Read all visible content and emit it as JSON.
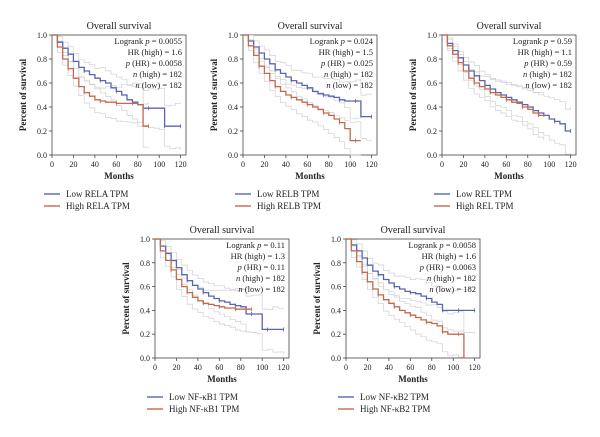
{
  "colors": {
    "low": "#5b63b5",
    "high": "#c46a4c",
    "ci": "#cfcfd6",
    "axis": "#444444"
  },
  "chart_data": [
    {
      "type": "line",
      "title": "Overall survival",
      "xlabel": "Months",
      "ylabel": "Percent of survival",
      "xlim": [
        0,
        125
      ],
      "ylim": [
        0,
        1.0
      ],
      "xticks": [
        "0",
        "20",
        "40",
        "60",
        "80",
        "100",
        "120"
      ],
      "yticks": [
        "0.0",
        "0.2",
        "0.4",
        "0.6",
        "0.8",
        "1.0"
      ],
      "stats": [
        {
          "key": "Logrank",
          "italic": "p",
          "value": " = 0.0055"
        },
        {
          "key": "HR (high) = 1.6",
          "italic": "",
          "value": ""
        },
        {
          "key": "",
          "italic": "p",
          "value": " (HR) = 0.0058"
        },
        {
          "key": "",
          "italic": "n",
          "value": " (high) = 182"
        },
        {
          "key": "",
          "italic": "n",
          "value": " (low) = 182"
        }
      ],
      "legend": [
        "Low RELA TPM",
        "High RELA TPM"
      ],
      "series": [
        {
          "name": "Low RELA TPM",
          "color": "low",
          "x": [
            0,
            5,
            10,
            15,
            20,
            25,
            30,
            35,
            40,
            45,
            50,
            55,
            60,
            65,
            70,
            75,
            80,
            85,
            90,
            95,
            100,
            105,
            110,
            115,
            120
          ],
          "y": [
            1.0,
            0.94,
            0.89,
            0.84,
            0.78,
            0.73,
            0.7,
            0.67,
            0.64,
            0.62,
            0.6,
            0.56,
            0.53,
            0.5,
            0.46,
            0.44,
            0.42,
            0.39,
            0.39,
            0.39,
            0.39,
            0.24,
            0.24,
            0.24,
            0.24
          ]
        },
        {
          "name": "High RELA TPM",
          "color": "high",
          "x": [
            0,
            5,
            10,
            15,
            20,
            25,
            30,
            35,
            40,
            45,
            50,
            55,
            60,
            65,
            70,
            75,
            80,
            85,
            90
          ],
          "y": [
            1.0,
            0.9,
            0.8,
            0.72,
            0.64,
            0.57,
            0.52,
            0.49,
            0.46,
            0.45,
            0.44,
            0.44,
            0.43,
            0.43,
            0.43,
            0.43,
            0.42,
            0.24,
            0.24
          ]
        }
      ]
    },
    {
      "type": "line",
      "title": "Overall survival",
      "xlabel": "Months",
      "ylabel": "Percent of survival",
      "xlim": [
        0,
        125
      ],
      "ylim": [
        0,
        1.0
      ],
      "xticks": [
        "0",
        "20",
        "40",
        "60",
        "80",
        "100",
        "120"
      ],
      "yticks": [
        "0.0",
        "0.2",
        "0.4",
        "0.6",
        "0.8",
        "1.0"
      ],
      "stats": [
        {
          "key": "Logrank",
          "italic": "p",
          "value": " = 0.024"
        },
        {
          "key": "HR (high) = 1.5",
          "italic": "",
          "value": ""
        },
        {
          "key": "",
          "italic": "p",
          "value": " (HR) = 0.025"
        },
        {
          "key": "",
          "italic": "n",
          "value": " (high) = 182"
        },
        {
          "key": "",
          "italic": "n",
          "value": " (low) = 182"
        }
      ],
      "legend": [
        "Low RELB TPM",
        "High RELB TPM"
      ],
      "series": [
        {
          "name": "Low RELB TPM",
          "color": "low",
          "x": [
            0,
            5,
            10,
            15,
            20,
            25,
            30,
            35,
            40,
            45,
            50,
            55,
            60,
            65,
            70,
            75,
            80,
            85,
            90,
            95,
            100,
            105,
            110,
            115,
            120
          ],
          "y": [
            1.0,
            0.95,
            0.9,
            0.85,
            0.8,
            0.76,
            0.71,
            0.68,
            0.65,
            0.62,
            0.6,
            0.58,
            0.56,
            0.53,
            0.51,
            0.5,
            0.49,
            0.48,
            0.46,
            0.45,
            0.45,
            0.45,
            0.32,
            0.32,
            0.32
          ]
        },
        {
          "name": "High RELB TPM",
          "color": "high",
          "x": [
            0,
            5,
            10,
            15,
            20,
            25,
            30,
            35,
            40,
            45,
            50,
            55,
            60,
            65,
            70,
            75,
            80,
            85,
            90,
            95,
            100,
            105,
            110
          ],
          "y": [
            1.0,
            0.91,
            0.83,
            0.74,
            0.68,
            0.62,
            0.57,
            0.53,
            0.5,
            0.48,
            0.46,
            0.44,
            0.42,
            0.4,
            0.38,
            0.35,
            0.33,
            0.3,
            0.27,
            0.22,
            0.12,
            0.12,
            0.12
          ]
        }
      ]
    },
    {
      "type": "line",
      "title": "Overall survival",
      "xlabel": "Months",
      "ylabel": "Percent of survival",
      "xlim": [
        0,
        125
      ],
      "ylim": [
        0,
        1.0
      ],
      "xticks": [
        "0",
        "20",
        "40",
        "60",
        "80",
        "100",
        "120"
      ],
      "yticks": [
        "0.0",
        "0.2",
        "0.4",
        "0.6",
        "0.8",
        "1.0"
      ],
      "stats": [
        {
          "key": "Logrank",
          "italic": "p",
          "value": " = 0.59"
        },
        {
          "key": "HR (high) = 1.1",
          "italic": "",
          "value": ""
        },
        {
          "key": "",
          "italic": "p",
          "value": " (HR) = 0.59"
        },
        {
          "key": "",
          "italic": "n",
          "value": " (high) = 182"
        },
        {
          "key": "",
          "italic": "n",
          "value": " (low) = 182"
        }
      ],
      "legend": [
        "Low REL TPM",
        "High REL TPM"
      ],
      "series": [
        {
          "name": "Low REL TPM",
          "color": "low",
          "x": [
            0,
            5,
            10,
            15,
            20,
            25,
            30,
            35,
            40,
            45,
            50,
            55,
            60,
            65,
            70,
            75,
            80,
            85,
            90,
            95,
            100,
            105,
            110,
            115,
            120
          ],
          "y": [
            1.0,
            0.93,
            0.87,
            0.81,
            0.75,
            0.7,
            0.66,
            0.62,
            0.58,
            0.55,
            0.52,
            0.5,
            0.48,
            0.46,
            0.44,
            0.42,
            0.4,
            0.37,
            0.35,
            0.33,
            0.3,
            0.28,
            0.26,
            0.2,
            0.2
          ]
        },
        {
          "name": "High REL TPM",
          "color": "high",
          "x": [
            0,
            5,
            10,
            15,
            20,
            25,
            30,
            35,
            40,
            45,
            50,
            55,
            60,
            65,
            70,
            75,
            80,
            85,
            90,
            95
          ],
          "y": [
            1.0,
            0.91,
            0.84,
            0.77,
            0.7,
            0.64,
            0.6,
            0.57,
            0.55,
            0.52,
            0.5,
            0.48,
            0.46,
            0.44,
            0.43,
            0.4,
            0.38,
            0.35,
            0.33,
            0.32
          ]
        }
      ]
    },
    {
      "type": "line",
      "title": "Overall survival",
      "xlabel": "Months",
      "ylabel": "Percent of survival",
      "xlim": [
        0,
        125
      ],
      "ylim": [
        0,
        1.0
      ],
      "xticks": [
        "0",
        "20",
        "40",
        "60",
        "80",
        "100",
        "120"
      ],
      "yticks": [
        "0.0",
        "0.2",
        "0.4",
        "0.6",
        "0.8",
        "1.0"
      ],
      "stats": [
        {
          "key": "Logrank",
          "italic": "p",
          "value": " = 0.11"
        },
        {
          "key": "HR (high) = 1.3",
          "italic": "",
          "value": ""
        },
        {
          "key": "",
          "italic": "p",
          "value": " (HR) = 0.11"
        },
        {
          "key": "",
          "italic": "n",
          "value": " (high) = 182"
        },
        {
          "key": "",
          "italic": "n",
          "value": " (low) = 182"
        }
      ],
      "legend": [
        "Low NF-κB1 TPM",
        "High NF-κB1 TPM"
      ],
      "series": [
        {
          "name": "Low NF-κB1 TPM",
          "color": "low",
          "x": [
            0,
            5,
            10,
            15,
            20,
            25,
            30,
            35,
            40,
            45,
            50,
            55,
            60,
            65,
            70,
            75,
            80,
            85,
            90,
            95,
            100,
            105,
            110,
            115,
            120
          ],
          "y": [
            1.0,
            0.94,
            0.88,
            0.82,
            0.76,
            0.7,
            0.65,
            0.61,
            0.58,
            0.55,
            0.52,
            0.5,
            0.48,
            0.47,
            0.45,
            0.44,
            0.43,
            0.37,
            0.37,
            0.37,
            0.24,
            0.24,
            0.24,
            0.24,
            0.24
          ]
        },
        {
          "name": "High NF-κB1 TPM",
          "color": "high",
          "x": [
            0,
            5,
            10,
            15,
            20,
            25,
            30,
            35,
            40,
            45,
            50,
            55,
            60,
            65,
            70,
            75,
            80,
            85,
            90
          ],
          "y": [
            1.0,
            0.9,
            0.82,
            0.74,
            0.66,
            0.6,
            0.55,
            0.51,
            0.48,
            0.46,
            0.45,
            0.44,
            0.43,
            0.42,
            0.42,
            0.41,
            0.41,
            0.41,
            0.41
          ]
        }
      ]
    },
    {
      "type": "line",
      "title": "Overall survival",
      "xlabel": "Months",
      "ylabel": "Percent of survival",
      "xlim": [
        0,
        125
      ],
      "ylim": [
        0,
        1.0
      ],
      "xticks": [
        "0",
        "20",
        "40",
        "60",
        "80",
        "100",
        "120"
      ],
      "yticks": [
        "0.0",
        "0.2",
        "0.4",
        "0.6",
        "0.8",
        "1.0"
      ],
      "stats": [
        {
          "key": "Logrank",
          "italic": "p",
          "value": " = 0.0058"
        },
        {
          "key": "HR (high) = 1.6",
          "italic": "",
          "value": ""
        },
        {
          "key": "",
          "italic": "p",
          "value": " (HR) = 0.0063"
        },
        {
          "key": "",
          "italic": "n",
          "value": " (high) = 182"
        },
        {
          "key": "",
          "italic": "n",
          "value": " (low) = 182"
        }
      ],
      "legend": [
        "Low NF-κB2 TPM",
        "High NF-κB2 TPM"
      ],
      "series": [
        {
          "name": "Low NF-κB2 TPM",
          "color": "low",
          "x": [
            0,
            5,
            10,
            15,
            20,
            25,
            30,
            35,
            40,
            45,
            50,
            55,
            60,
            65,
            70,
            75,
            80,
            85,
            90,
            95,
            100,
            105,
            110,
            115,
            120
          ],
          "y": [
            1.0,
            0.95,
            0.9,
            0.84,
            0.78,
            0.73,
            0.7,
            0.66,
            0.63,
            0.6,
            0.58,
            0.56,
            0.55,
            0.54,
            0.52,
            0.5,
            0.47,
            0.45,
            0.4,
            0.4,
            0.4,
            0.4,
            0.4,
            0.4,
            0.4
          ]
        },
        {
          "name": "High NF-κB2 TPM",
          "color": "high",
          "x": [
            0,
            5,
            10,
            15,
            20,
            25,
            30,
            35,
            40,
            45,
            50,
            55,
            60,
            65,
            70,
            75,
            80,
            85,
            90,
            95,
            100,
            105,
            110
          ],
          "y": [
            1.0,
            0.9,
            0.81,
            0.72,
            0.64,
            0.58,
            0.53,
            0.49,
            0.46,
            0.43,
            0.4,
            0.38,
            0.36,
            0.34,
            0.32,
            0.3,
            0.29,
            0.27,
            0.22,
            0.2,
            0.2,
            0.2,
            0.0
          ]
        }
      ]
    }
  ]
}
